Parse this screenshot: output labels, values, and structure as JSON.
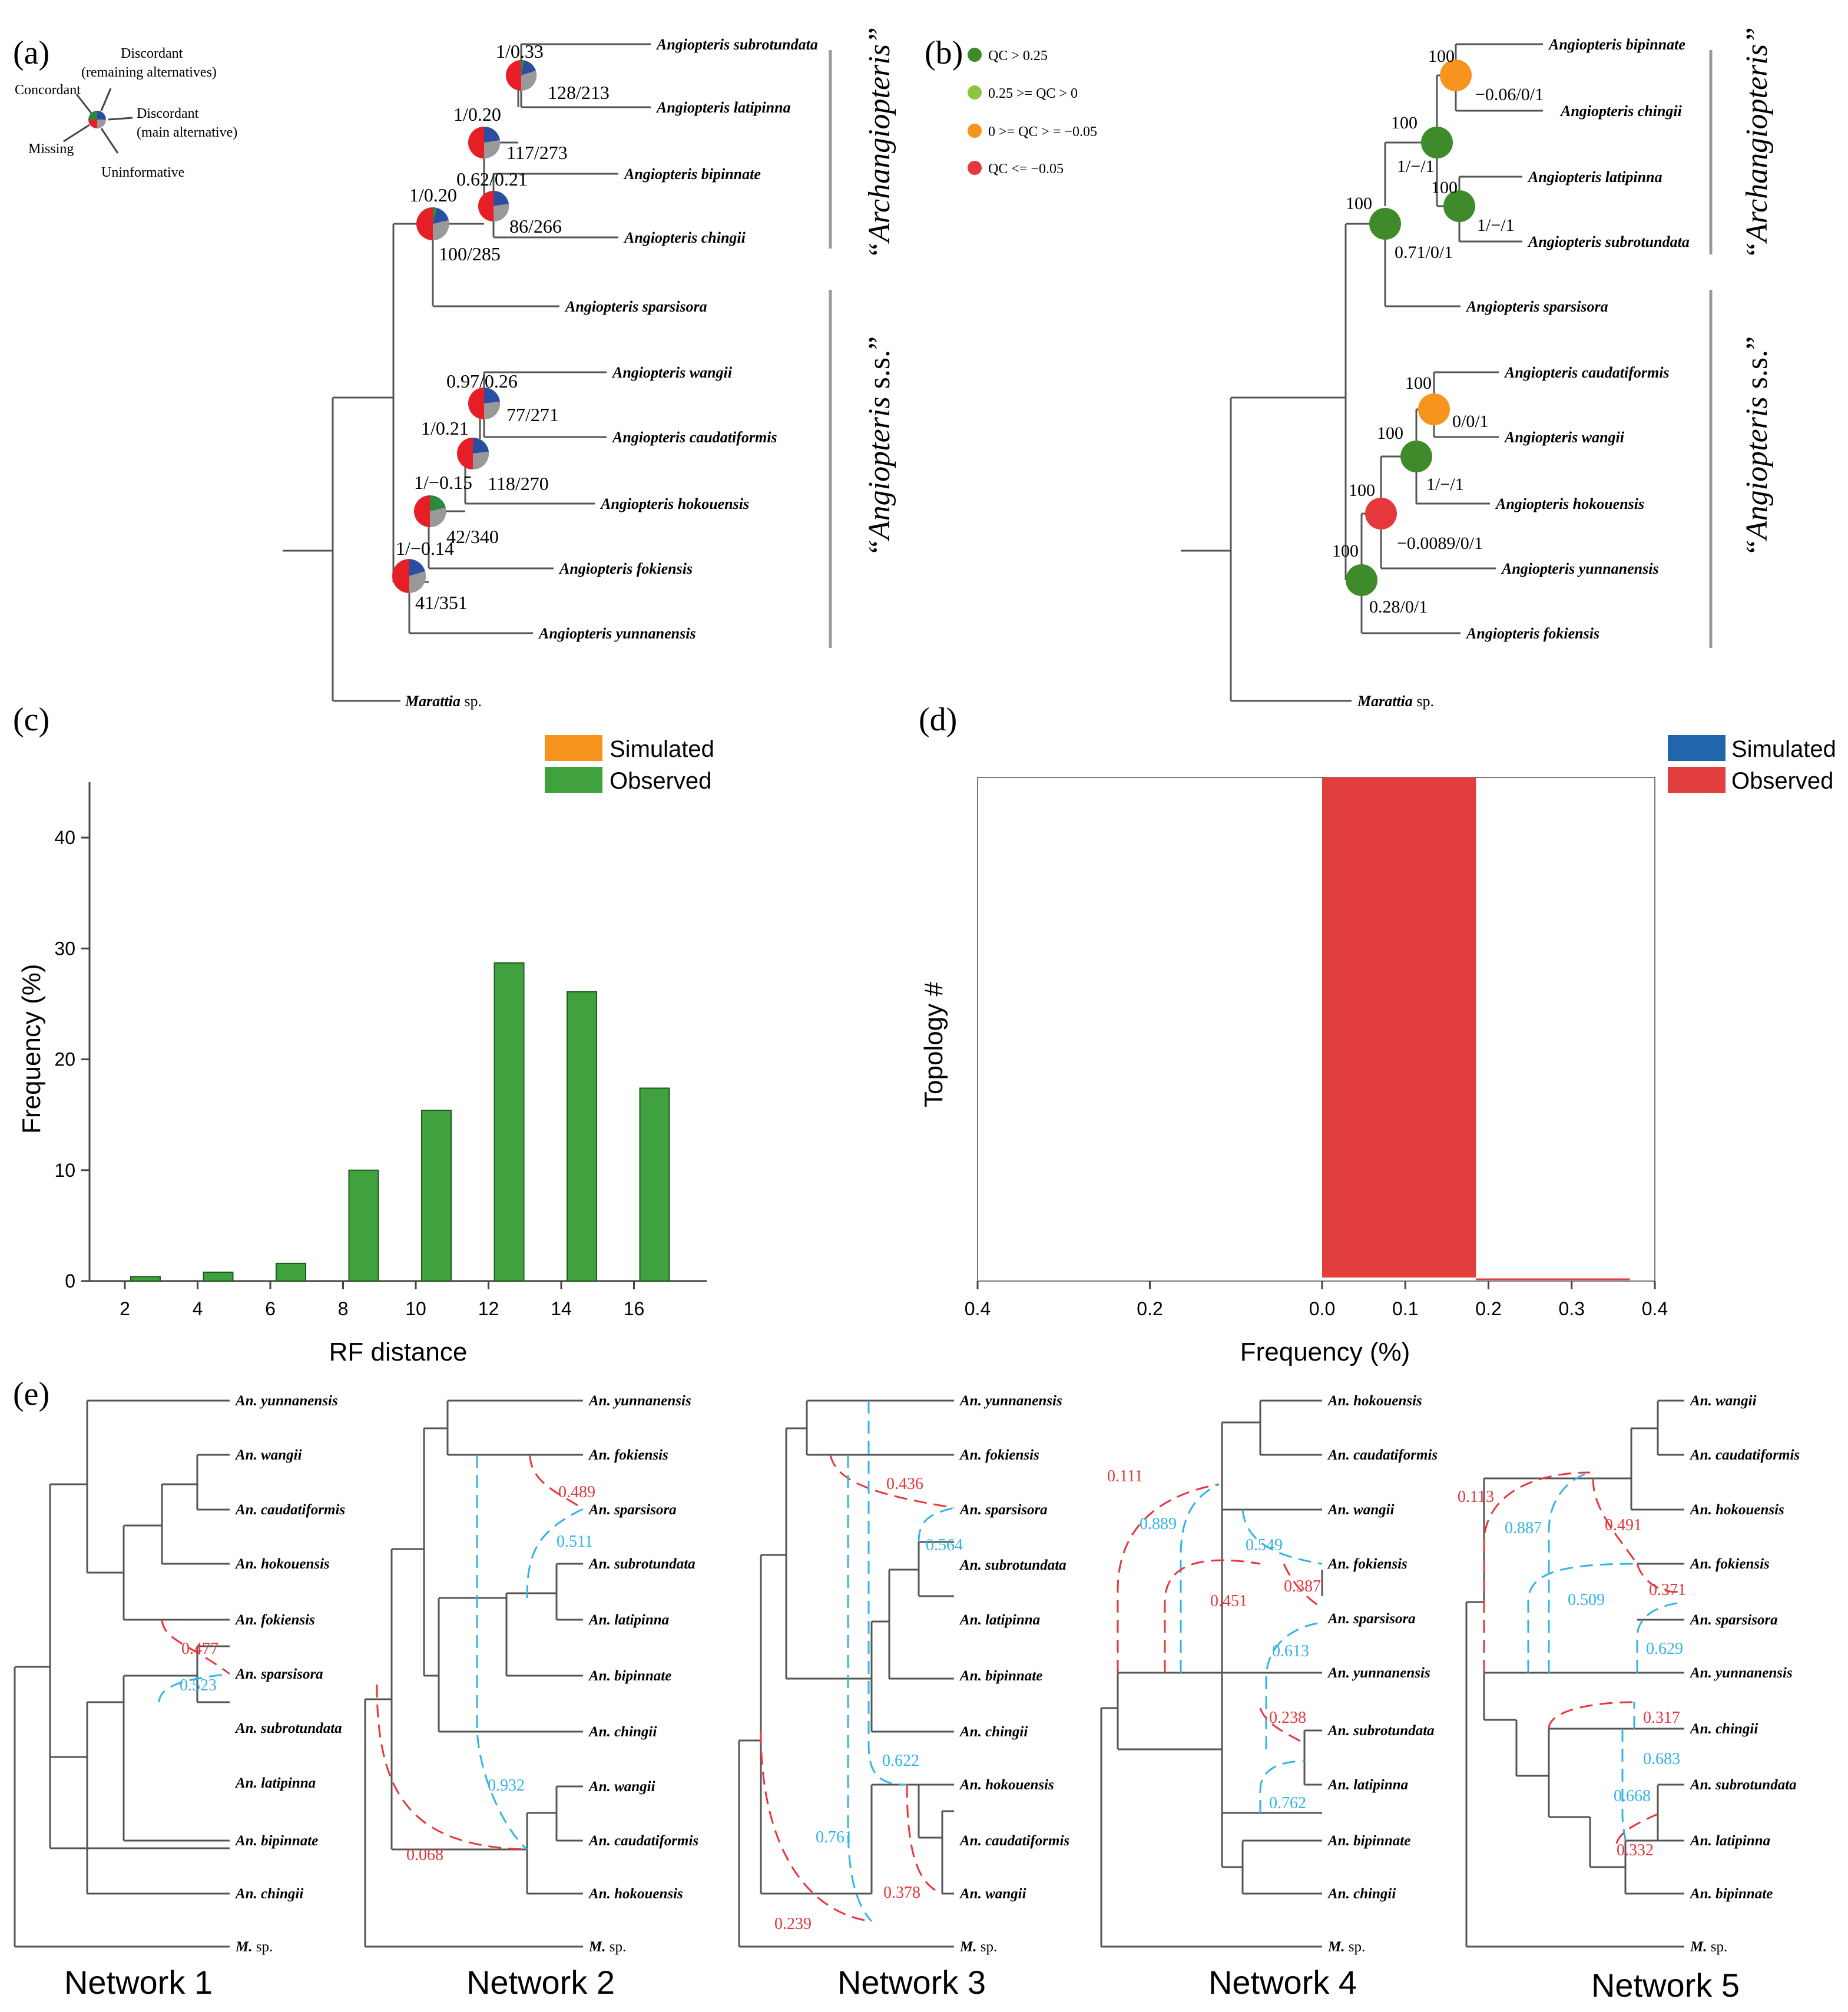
{
  "panel_a": {
    "letter": "(a)",
    "legend": {
      "concordant": "Concordant",
      "discordant_remaining_1": "Discordant",
      "discordant_remaining_2": "(remaining alternatives)",
      "discordant_main_1": "Discordant",
      "discordant_main_2": "(main alternative)",
      "missing": "Missing",
      "uninformative": "Uninformative"
    },
    "taxa": {
      "t1": "Angiopteris  subrotundata",
      "t2": "Angiopteris  latipinna",
      "t3": "Angiopteris  bipinnate",
      "t4": "Angiopteris  chingii",
      "t5": "Angiopteris  sparsisora",
      "t6": "Angiopteris  wangii",
      "t7": "Angiopteris  caudatiformis",
      "t8": "Angiopteris  hokouensis",
      "t9": "Angiopteris  fokiensis",
      "t10": "Angiopteris  yunnanensis",
      "outgroup": "Marattia",
      "outgroup_suffix": " sp."
    },
    "nodes": {
      "n1_top": "1/0.33",
      "n1_bottom": "128/213",
      "n2_top": "1/0.20",
      "n2_bottom": "117/273",
      "n3_top": "0.62/0.21",
      "n3_bottom": "86/266",
      "n4_top": "1/0.20",
      "n4_bottom": "100/285",
      "n5_top": "0.97/0.26",
      "n5_bottom": "77/271",
      "n6_top": "1/0.21",
      "n6_bottom": "118/270",
      "n7_top": "1/−0.15",
      "n7_bottom": "42/340",
      "n8_top": "1/−0.14",
      "n8_bottom": "41/351"
    },
    "clade_upper": "“Archangiopteris”",
    "clade_lower_1": "“Angiopteris",
    "clade_lower_2": " s.s.”"
  },
  "panel_b": {
    "letter": "(b)",
    "legend": [
      {
        "label": "QC > 0.25",
        "color": "#3f8a2b"
      },
      {
        "label": "0.25 >= QC > 0",
        "color": "#8cc63f"
      },
      {
        "label": "0 >= QC > = −0.05",
        "color": "#f7941d"
      },
      {
        "label": "QC <= −0.05",
        "color": "#e6373c"
      }
    ],
    "taxa": {
      "t1": "Angiopteris  bipinnate",
      "t2": "Angiopteris  chingii",
      "t3": "Angiopteris  latipinna",
      "t4": "Angiopteris  subrotundata",
      "t5": "Angiopteris  sparsisora",
      "t6": "Angiopteris  caudatiformis",
      "t7": "Angiopteris  wangii",
      "t8": "Angiopteris  hokouensis",
      "t9": "Angiopteris  yunnanensis",
      "t10": "Angiopteris  fokiensis",
      "outgroup": "Marattia",
      "outgroup_suffix": " sp."
    },
    "nodes": {
      "b1_support": "100",
      "b1_value": "−0.06/0/1",
      "b2_support": "100",
      "b2_value": "1/−/1",
      "b3_support": "100",
      "b3_value": "1/−/1",
      "b4_support": "100",
      "b4_value": "0.71/0/1",
      "b5_support": "100",
      "b5_value": "0/0/1",
      "b6_support": "100",
      "b6_value": "1/−/1",
      "b7_support": "100",
      "b7_value": "−0.0089/0/1",
      "b8_support": "100",
      "b8_value": "0.28/0/1"
    },
    "clade_upper": "“Archangiopteris”",
    "clade_lower_1": "“Angiopteris",
    "clade_lower_2": " s.s.”"
  },
  "chart_data": [
    {
      "type": "bar",
      "panel": "(c)",
      "title": "",
      "xlabel": "RF distance",
      "ylabel": "Frequency (%)",
      "categories": [
        "2",
        "4",
        "6",
        "8",
        "10",
        "12",
        "14",
        "16"
      ],
      "series": [
        {
          "name": "Simulated",
          "color": "#f7941d",
          "values": [
            0,
            0,
            0,
            0,
            0,
            0,
            0,
            0
          ]
        },
        {
          "name": "Observed",
          "color": "#3fa23f",
          "values": [
            0.4,
            0.8,
            1.6,
            10.0,
            15.4,
            28.7,
            26.1,
            17.4
          ]
        }
      ],
      "ylim": [
        0,
        45
      ],
      "yticks": [
        "0",
        "10",
        "20",
        "30",
        "40"
      ],
      "legend_position": "top-right"
    },
    {
      "type": "bar",
      "panel": "(d)",
      "orientation": "horizontal",
      "title": "",
      "xlabel": "Frequency (%)",
      "ylabel": "Topology #",
      "xticks": [
        "0.4",
        "0.2",
        "0.0",
        "0.1",
        "0.2",
        "0.3",
        "0.4"
      ],
      "series": [
        {
          "name": "Simulated",
          "color": "#2166ac",
          "values": [
            0
          ]
        },
        {
          "name": "Observed",
          "color": "#e23e3e",
          "values": [
            0.185
          ]
        }
      ],
      "xlim": [
        -0.4,
        0.4
      ],
      "legend_position": "top-right"
    }
  ],
  "panel_c": {
    "letter": "(c)",
    "legend_simulated": "Simulated",
    "legend_observed": "Observed"
  },
  "panel_d": {
    "letter": "(d)",
    "legend_simulated": "Simulated",
    "legend_observed": "Observed"
  },
  "panel_e": {
    "letter": "(e)",
    "networks": [
      {
        "name": "Network 1",
        "taxa": [
          "An.  yunnanensis",
          "An.  wangii",
          "An.  caudatiformis",
          "An.  hokouensis",
          "An.  fokiensis",
          "An.  sparsisora",
          "An.  subrotundata",
          "An.  latipinna",
          "An.  bipinnate",
          "An.  chingii"
        ],
        "outgroup": "M.",
        "outgroup_suffix": " sp.",
        "gammas": {
          "red1": "0.477",
          "blue1": "0.523"
        }
      },
      {
        "name": "Network 2",
        "taxa": [
          "An.  yunnanensis",
          "An.  fokiensis",
          "An.  sparsisora",
          "An.  subrotundata",
          "An.  latipinna",
          "An.  bipinnate",
          "An.  chingii",
          "An.  wangii",
          "An.  caudatiformis",
          "An.  hokouensis"
        ],
        "outgroup": "M.",
        "outgroup_suffix": " sp.",
        "gammas": {
          "red1": "0.489",
          "blue1": "0.511",
          "blue2": "0.932",
          "red2": "0.068"
        }
      },
      {
        "name": "Network 3",
        "taxa": [
          "An.  yunnanensis",
          "An.  fokiensis",
          "An.  sparsisora",
          "An.  subrotundata",
          "An.  latipinna",
          "An.  bipinnate",
          "An.  chingii",
          "An.  hokouensis",
          "An.  caudatiformis",
          "An.  wangii"
        ],
        "outgroup": "M.",
        "outgroup_suffix": " sp.",
        "gammas": {
          "red1": "0.436",
          "blue1": "0.564",
          "blue2": "0.622",
          "blue3": "0.761",
          "red2": "0.378",
          "red3": "0.239"
        }
      },
      {
        "name": "Network 4",
        "taxa": [
          "An.  hokouensis",
          "An.  caudatiformis",
          "An.  wangii",
          "An.  fokiensis",
          "An.  sparsisora",
          "An.  yunnanensis",
          "An.  subrotundata",
          "An.  latipinna",
          "An.  bipinnate",
          "An.  chingii"
        ],
        "outgroup": "M.",
        "outgroup_suffix": " sp.",
        "gammas": {
          "red1": "0.111",
          "blue1": "0.889",
          "blue2": "0.549",
          "red2": "0.451",
          "red3": "0.387",
          "blue3": "0.613",
          "red4": "0.238",
          "blue4": "0.762"
        }
      },
      {
        "name": "Network 5",
        "taxa": [
          "An.  wangii",
          "An.  caudatiformis",
          "An.  hokouensis",
          "An.  fokiensis",
          "An.  sparsisora",
          "An.  yunnanensis",
          "An.  chingii",
          "An.  subrotundata",
          "An.  latipinna",
          "An.  bipinnate"
        ],
        "outgroup": "M.",
        "outgroup_suffix": " sp.",
        "gammas": {
          "red1": "0.113",
          "blue1": "0.887",
          "red2": "0.491",
          "blue2": "0.509",
          "red3": "0.371",
          "blue3": "0.629",
          "red4": "0.317",
          "blue4": "0.683",
          "blue5": "0.668",
          "red5": "0.332"
        }
      }
    ]
  }
}
